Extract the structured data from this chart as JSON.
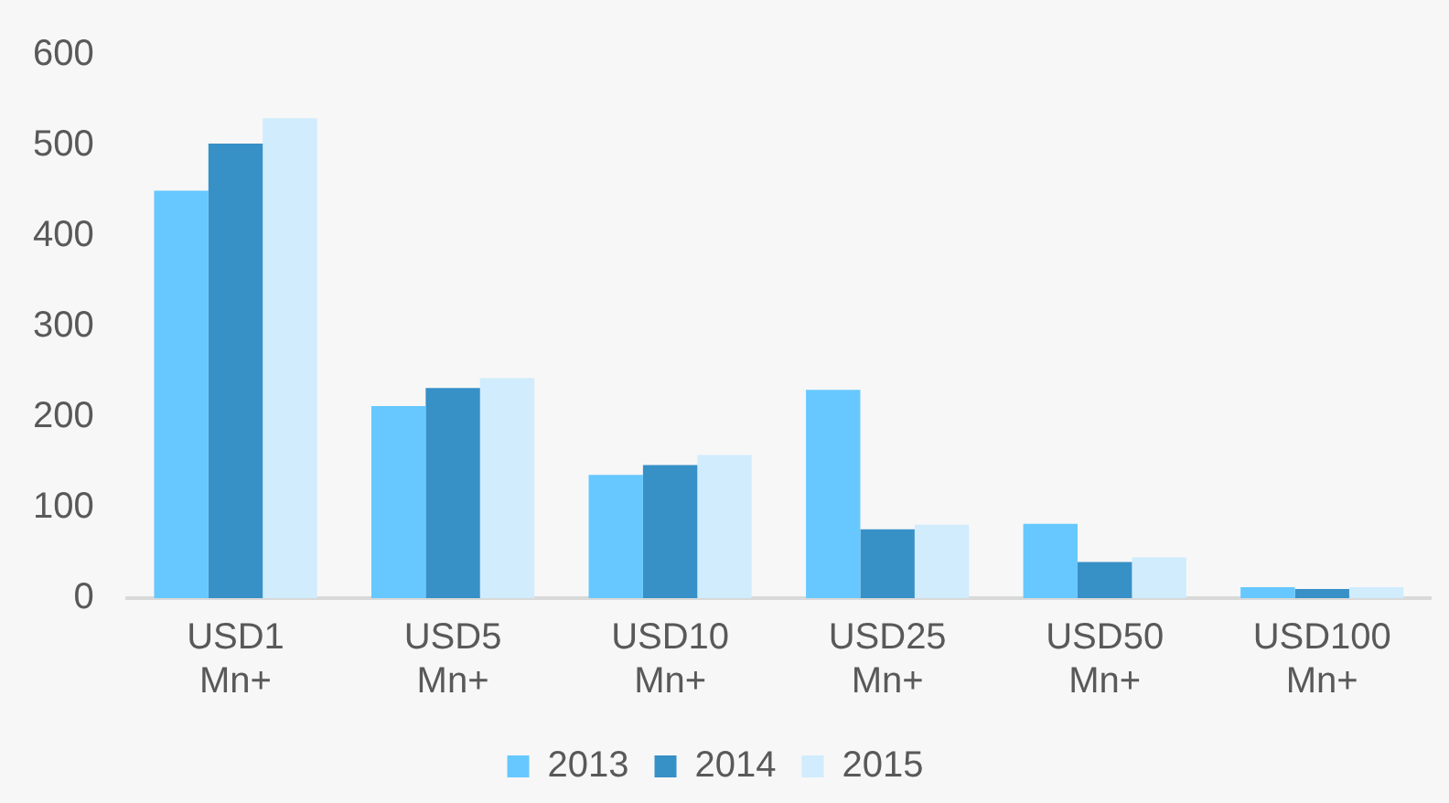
{
  "chart_data": {
    "type": "bar",
    "categories": [
      "USD1 Mn+",
      "USD5 Mn+",
      "USD10 Mn+",
      "USD25 Mn+",
      "USD50 Mn+",
      "USD100 Mn+"
    ],
    "series": [
      {
        "name": "2013",
        "color": "#66c8ff",
        "values": [
          450,
          212,
          136,
          230,
          82,
          12
        ]
      },
      {
        "name": "2014",
        "color": "#3790c6",
        "values": [
          502,
          232,
          147,
          76,
          40,
          10
        ]
      },
      {
        "name": "2015",
        "color": "#d0ecfd",
        "values": [
          530,
          243,
          158,
          81,
          45,
          12
        ]
      }
    ],
    "ylim": [
      0,
      600
    ],
    "yticks": [
      0,
      100,
      200,
      300,
      400,
      500,
      600
    ],
    "grid": false,
    "legend": "bottom"
  }
}
